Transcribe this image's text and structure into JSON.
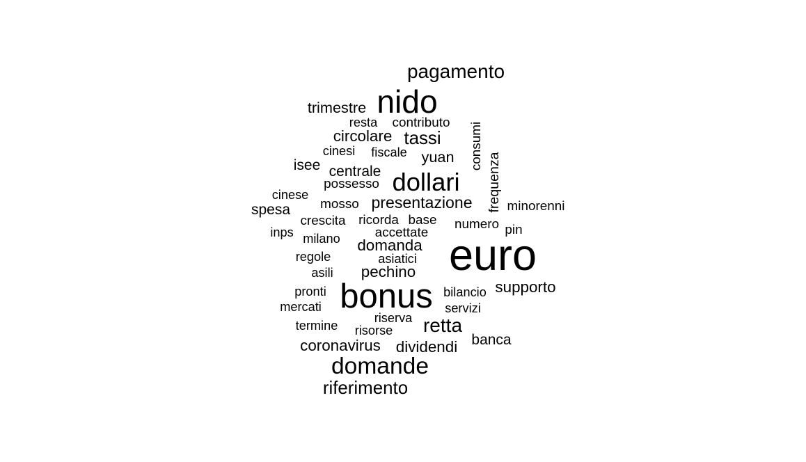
{
  "chart_data": {
    "type": "wordcloud",
    "text_color": "#000000",
    "background": "#ffffff",
    "words": [
      {
        "text": "euro",
        "size": 9
      },
      {
        "text": "bonus",
        "size": 7
      },
      {
        "text": "nido",
        "size": 6.6
      },
      {
        "text": "dollari",
        "size": 5.2
      },
      {
        "text": "domande",
        "size": 4.8
      },
      {
        "text": "pagamento",
        "size": 4.0
      },
      {
        "text": "retta",
        "size": 4.0
      },
      {
        "text": "riferimento",
        "size": 3.7
      },
      {
        "text": "tassi",
        "size": 3.7
      },
      {
        "text": "presentazione",
        "size": 3.3
      },
      {
        "text": "circolare",
        "size": 3.2
      },
      {
        "text": "supporto",
        "size": 3.2
      },
      {
        "text": "domanda",
        "size": 3.2
      },
      {
        "text": "pechino",
        "size": 3.2
      },
      {
        "text": "coronavirus",
        "size": 3.2
      },
      {
        "text": "dividendi",
        "size": 3.2
      },
      {
        "text": "trimestre",
        "size": 3.1
      },
      {
        "text": "yuan",
        "size": 3.1
      },
      {
        "text": "centrale",
        "size": 3.0
      },
      {
        "text": "spesa",
        "size": 3.0
      },
      {
        "text": "isee",
        "size": 3.0
      },
      {
        "text": "banca",
        "size": 3.0
      },
      {
        "text": "frequenza",
        "size": 2.8
      },
      {
        "text": "consumi",
        "size": 2.7
      },
      {
        "text": "contributo",
        "size": 2.7
      },
      {
        "text": "mosso",
        "size": 2.7
      },
      {
        "text": "possesso",
        "size": 2.7
      },
      {
        "text": "crescita",
        "size": 2.7
      },
      {
        "text": "ricorda",
        "size": 2.7
      },
      {
        "text": "base",
        "size": 2.7
      },
      {
        "text": "accettate",
        "size": 2.7
      },
      {
        "text": "numero",
        "size": 2.7
      },
      {
        "text": "minorenni",
        "size": 2.7
      },
      {
        "text": "pin",
        "size": 2.7
      },
      {
        "text": "resta",
        "size": 2.6
      },
      {
        "text": "fiscale",
        "size": 2.6
      },
      {
        "text": "cinesi",
        "size": 2.6
      },
      {
        "text": "cinese",
        "size": 2.6
      },
      {
        "text": "inps",
        "size": 2.6
      },
      {
        "text": "milano",
        "size": 2.6
      },
      {
        "text": "regole",
        "size": 2.6
      },
      {
        "text": "asiatici",
        "size": 2.6
      },
      {
        "text": "asili",
        "size": 2.6
      },
      {
        "text": "pronti",
        "size": 2.6
      },
      {
        "text": "bilancio",
        "size": 2.6
      },
      {
        "text": "mercati",
        "size": 2.6
      },
      {
        "text": "servizi",
        "size": 2.6
      },
      {
        "text": "riserva",
        "size": 2.6
      },
      {
        "text": "termine",
        "size": 2.6
      },
      {
        "text": "risorse",
        "size": 2.6
      }
    ]
  }
}
